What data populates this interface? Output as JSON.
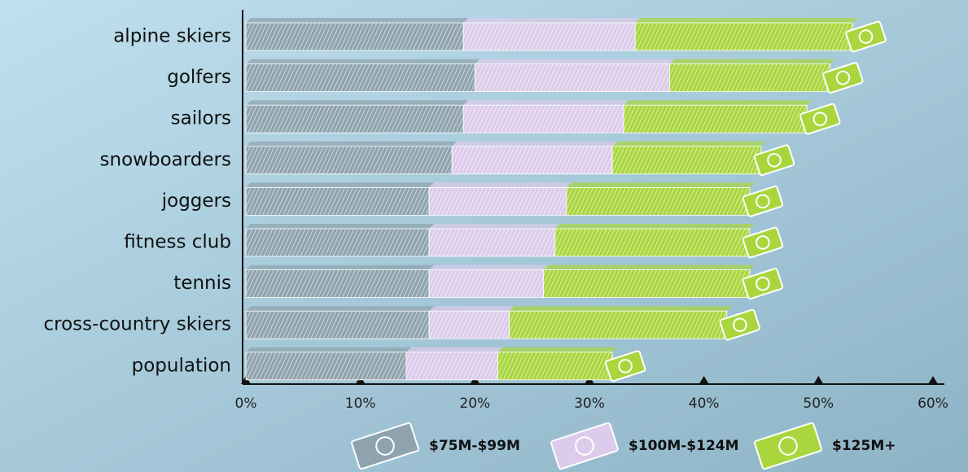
{
  "chart_data": {
    "type": "bar",
    "orientation": "horizontal",
    "stacked": true,
    "categories": [
      "alpine skiers",
      "golfers",
      "sailors",
      "snowboarders",
      "joggers",
      "fitness club",
      "tennis",
      "cross-country skiers",
      "population"
    ],
    "series": [
      {
        "name": "$75M-$99M",
        "color": "#8ea3ad",
        "values": [
          19,
          20,
          19,
          18,
          16,
          16,
          16,
          16,
          14
        ]
      },
      {
        "name": "$100M-$124M",
        "color": "#dccbea",
        "values": [
          15,
          17,
          14,
          14,
          12,
          11,
          10,
          7,
          8
        ]
      },
      {
        "name": "$125M+",
        "color": "#a9d63c",
        "values": [
          19,
          14,
          16,
          13,
          16,
          17,
          18,
          19,
          10
        ]
      }
    ],
    "xlim": [
      0,
      60
    ],
    "xticks": [
      {
        "value": 0,
        "label": "0%"
      },
      {
        "value": 10,
        "label": "10%"
      },
      {
        "value": 20,
        "label": "20%"
      },
      {
        "value": 30,
        "label": "30%"
      },
      {
        "value": 40,
        "label": "40%"
      },
      {
        "value": 50,
        "label": "50%"
      },
      {
        "value": 60,
        "label": "60%"
      }
    ],
    "legend": "bottom"
  }
}
